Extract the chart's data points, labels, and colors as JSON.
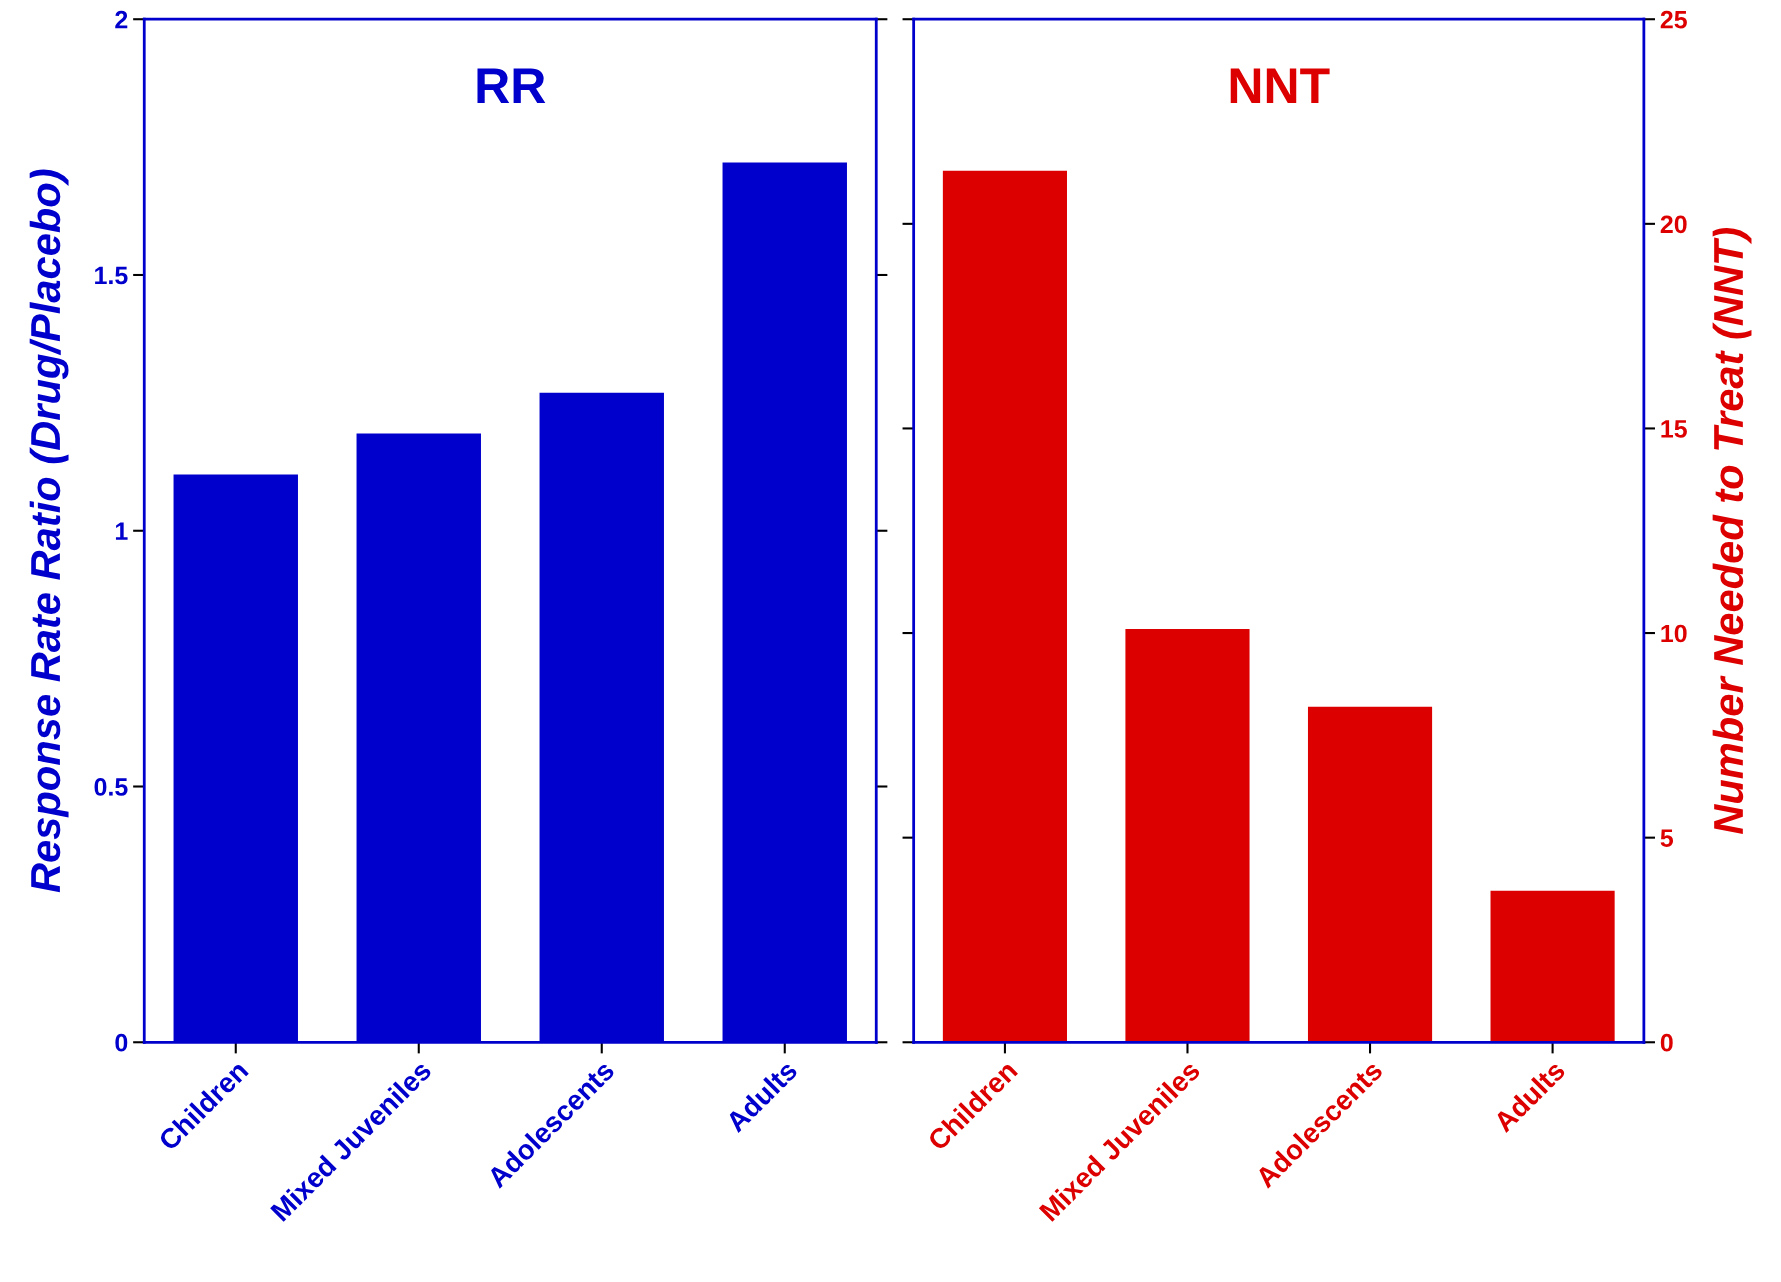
{
  "chart_data": [
    {
      "type": "bar",
      "title": "RR",
      "categories": [
        "Children",
        "Mixed Juveniles",
        "Adolescents",
        "Adults"
      ],
      "values": [
        1.11,
        1.19,
        1.27,
        1.72
      ],
      "color": "#0000cc",
      "ylabel": "Response Rate Ratio (Drug/Placebo)",
      "ylim": [
        0,
        2
      ],
      "yticks": [
        0,
        0.5,
        1,
        1.5,
        2
      ],
      "grid": false,
      "legend": false
    },
    {
      "type": "bar",
      "title": "NNT",
      "categories": [
        "Children",
        "Mixed Juveniles",
        "Adolescents",
        "Adults"
      ],
      "series": [
        {
          "color": "#dd0000",
          "values": [
            21.3,
            10.1,
            8.2,
            3.7
          ],
          "axis": "y2"
        }
      ],
      "y2label": "Number Needed to Treat (NNT)",
      "y2lim": [
        0,
        25
      ],
      "y2ticks": [
        0,
        5,
        10,
        15,
        20,
        25
      ],
      "grid": false,
      "legend": false
    }
  ]
}
